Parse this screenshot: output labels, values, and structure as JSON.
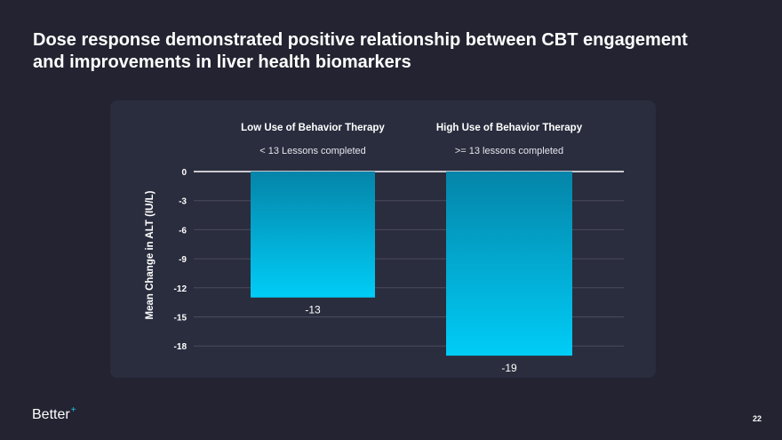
{
  "slide": {
    "title_line1": "Dose response demonstrated positive relationship between CBT engagement",
    "title_line2": "and improvements in liver health biomarkers",
    "logo": "Better",
    "logo_mark": "+",
    "page_number": "22"
  },
  "colors": {
    "background": "#232331",
    "panel": "#2a2d3e",
    "bar_top": "#0584a8",
    "bar_bottom": "#00cdf7",
    "grid": "#4a4d5e",
    "zero_line": "#ffffff"
  },
  "chart_data": {
    "type": "bar",
    "categories": [
      "Low Use of Behavior Therapy",
      "High Use of Behavior Therapy"
    ],
    "subcategories": [
      "< 13 Lessons completed",
      ">= 13 lessons completed"
    ],
    "values": [
      -13,
      -19
    ],
    "value_labels": [
      "-13",
      "-19"
    ],
    "ylabel": "Mean Change in ALT (IU/L)",
    "yticks": [
      0,
      -3,
      -6,
      -9,
      -12,
      -15,
      -18
    ],
    "ylim": [
      -19,
      0
    ],
    "grid": true
  }
}
